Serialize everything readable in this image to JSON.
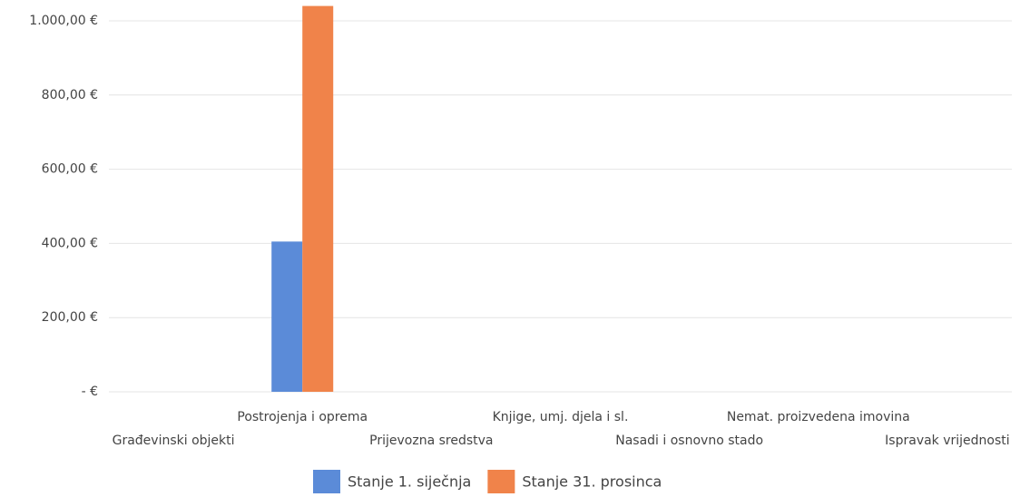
{
  "chart_data": {
    "type": "bar",
    "categories": [
      "Građevinski objekti",
      "Postrojenja i oprema",
      "Prijevozna sredstva",
      "Knjige, umj. djela i sl.",
      "Nasadi i osnovno stado",
      "Nemat. proizvedena imovina",
      "Ispravak vrijednosti"
    ],
    "series": [
      {
        "name": "Stanje 1. siječnja",
        "color": "#5b8bd8",
        "values": [
          0,
          405,
          0,
          0,
          0,
          0,
          0
        ]
      },
      {
        "name": "Stanje 31. prosinca",
        "color": "#f0834a",
        "values": [
          0,
          1040,
          0,
          0,
          0,
          0,
          0
        ]
      }
    ],
    "ylim": [
      0,
      1050
    ],
    "yticks": [
      {
        "value": 0,
        "label": "-   €"
      },
      {
        "value": 200,
        "label": "200,00 €"
      },
      {
        "value": 400,
        "label": "400,00 €"
      },
      {
        "value": 600,
        "label": "600,00 €"
      },
      {
        "value": 800,
        "label": "800,00 €"
      },
      {
        "value": 1000,
        "label": "1.000,00 €"
      }
    ],
    "grid": true,
    "legend": "bottom"
  }
}
